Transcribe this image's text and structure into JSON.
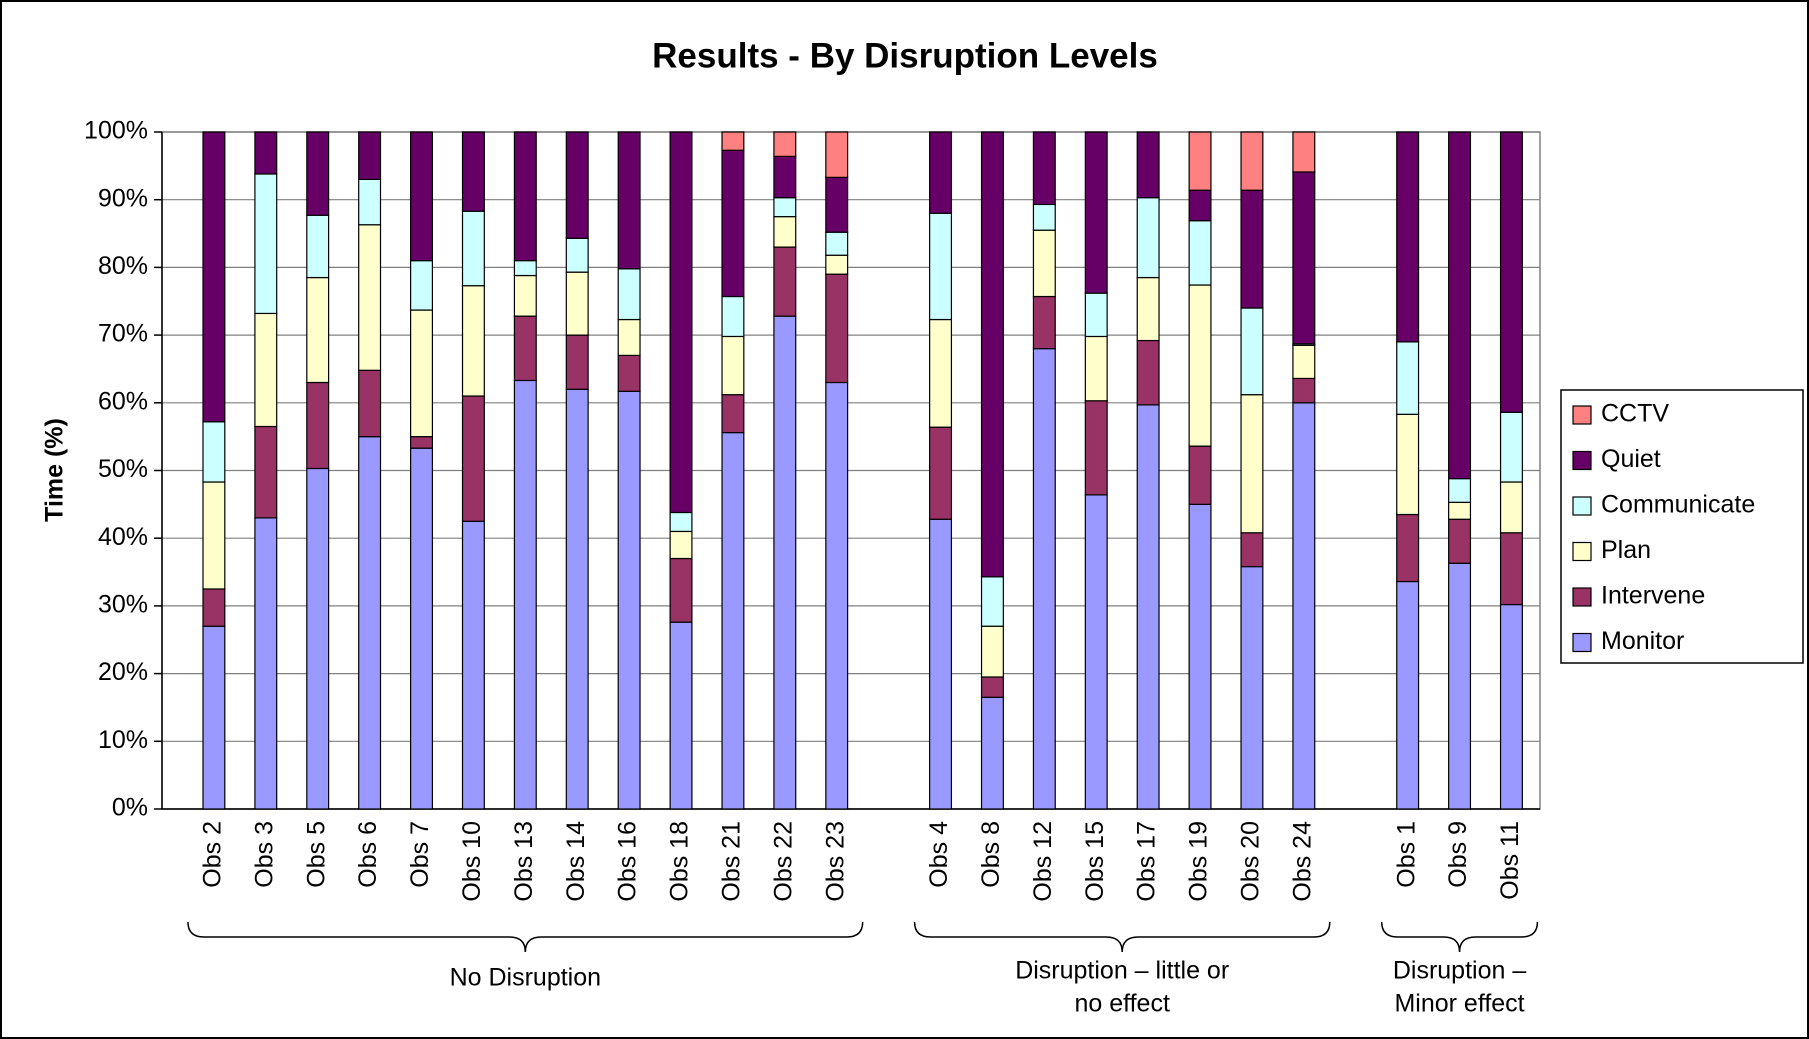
{
  "chart_data": {
    "type": "stacked_bar",
    "title": "Results - By Disruption Levels",
    "y_label": "Time (%)",
    "categories": [
      "Obs 2",
      "Obs 3",
      "Obs 5",
      "Obs 6",
      "Obs 7",
      "Obs 10",
      "Obs 13",
      "Obs 14",
      "Obs 16",
      "Obs 18",
      "Obs 21",
      "Obs 22",
      "Obs 23",
      null,
      "Obs 4",
      "Obs 8",
      "Obs 12",
      "Obs 15",
      "Obs 17",
      "Obs 19",
      "Obs 20",
      "Obs 24",
      null,
      "Obs 1",
      "Obs 9",
      "Obs 11"
    ],
    "groups": [
      [
        "No Disruption"
      ],
      [
        "Disruption – little or",
        "no effect"
      ],
      [
        "Disruption –",
        "Minor effect"
      ]
    ],
    "series": [
      {
        "name": "Monitor",
        "color": "#9999ff",
        "values": [
          27,
          43,
          50.3,
          55,
          53.3,
          42.5,
          63.3,
          62,
          61.7,
          27.6,
          55.6,
          72.8,
          63,
          null,
          42.8,
          16.5,
          68,
          46.4,
          59.7,
          45,
          35.8,
          60,
          null,
          33.6,
          36.3,
          30.2
        ]
      },
      {
        "name": "Intervene",
        "color": "#993366",
        "values": [
          5.5,
          13.5,
          12.7,
          9.8,
          1.7,
          18.5,
          9.5,
          8,
          5.3,
          9.4,
          5.6,
          10.2,
          16,
          null,
          13.6,
          3,
          7.7,
          13.9,
          9.5,
          8.6,
          5,
          3.6,
          null,
          9.9,
          6.5,
          10.6
        ]
      },
      {
        "name": "Plan",
        "color": "#ffffcc",
        "values": [
          15.8,
          16.7,
          15.5,
          21.5,
          18.7,
          16.3,
          6,
          9.3,
          5.3,
          4,
          8.6,
          4.5,
          2.8,
          null,
          15.9,
          7.5,
          9.8,
          9.5,
          9.3,
          23.8,
          20.4,
          4.9,
          null,
          14.8,
          2.5,
          7.5
        ]
      },
      {
        "name": "Communicate",
        "color": "#ccffff",
        "values": [
          8.9,
          20.6,
          9.2,
          6.7,
          7.3,
          11,
          2.2,
          5,
          7.5,
          2.8,
          5.9,
          2.8,
          3.4,
          null,
          15.7,
          7.3,
          3.8,
          6.4,
          11.8,
          9.5,
          12.8,
          0.2,
          null,
          10.7,
          3.5,
          10.3
        ]
      },
      {
        "name": "Quiet",
        "color": "#660066",
        "values": [
          42.8,
          6.2,
          12.3,
          7,
          19,
          11.7,
          19,
          15.7,
          20.2,
          56.2,
          21.6,
          6.1,
          8.1,
          null,
          12,
          65.7,
          10.7,
          23.8,
          9.7,
          4.5,
          17.4,
          25.4,
          null,
          31,
          51.2,
          41.4
        ]
      },
      {
        "name": "CCTV",
        "color": "#ff8080",
        "values": [
          0,
          0,
          0,
          0,
          0,
          0,
          0,
          0,
          0,
          0,
          2.7,
          3.6,
          6.7,
          null,
          0,
          0,
          0,
          0,
          0,
          8.6,
          8.6,
          5.9,
          null,
          0,
          0,
          0
        ]
      }
    ],
    "ylim": [
      0,
      100
    ],
    "yticks": [
      {
        "value": 0,
        "label": "0%"
      },
      {
        "value": 10,
        "label": "10%"
      },
      {
        "value": 20,
        "label": "20%"
      },
      {
        "value": 30,
        "label": "30%"
      },
      {
        "value": 40,
        "label": "40%"
      },
      {
        "value": 50,
        "label": "50%"
      },
      {
        "value": 60,
        "label": "60%"
      },
      {
        "value": 70,
        "label": "70%"
      },
      {
        "value": 80,
        "label": "80%"
      },
      {
        "value": 90,
        "label": "90%"
      },
      {
        "value": 100,
        "label": "100%"
      }
    ],
    "grid": true,
    "legend": "right"
  }
}
